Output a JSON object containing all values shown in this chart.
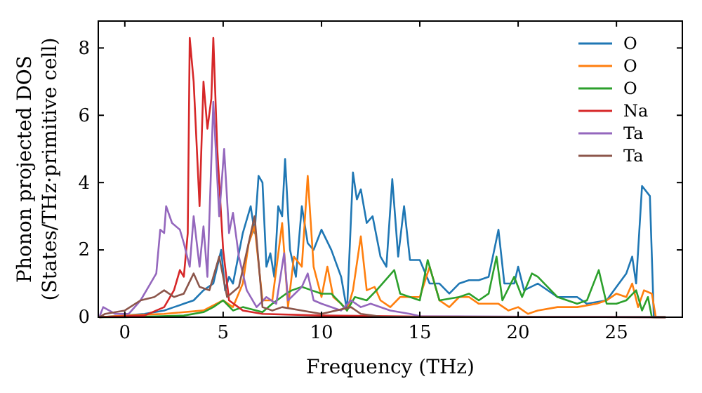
{
  "chart_data": {
    "type": "line",
    "xlabel": "Frequency (THz)",
    "ylabel": "Phonon projected DOS\n(States/THz·primitive cell)",
    "xlim": [
      -1.35,
      28.35
    ],
    "ylim": [
      0,
      8.8
    ],
    "xticks": [
      0,
      5,
      10,
      15,
      20,
      25
    ],
    "yticks": [
      0,
      2,
      4,
      6,
      8
    ],
    "grid": false,
    "legend": "top right",
    "marker": "none",
    "line_style": "solid",
    "series": [
      {
        "name": "O",
        "color": "#1f77b4",
        "x": [
          -1.3,
          0,
          1,
          2,
          2.5,
          3,
          3.5,
          4,
          4.5,
          4.9,
          5.1,
          5.3,
          5.5,
          6,
          6.4,
          6.6,
          6.8,
          7,
          7.2,
          7.4,
          7.6,
          7.8,
          8,
          8.15,
          8.4,
          8.7,
          9,
          9.3,
          9.6,
          10,
          10.5,
          11,
          11.3,
          11.6,
          11.8,
          12,
          12.3,
          12.6,
          13,
          13.3,
          13.6,
          13.9,
          14.2,
          14.5,
          15,
          15.5,
          16,
          16.5,
          17,
          17.5,
          18,
          18.5,
          19,
          19.3,
          19.8,
          20,
          20.3,
          21,
          22,
          23,
          23.5,
          24.5,
          25,
          25.5,
          25.8,
          26,
          26.3,
          26.7,
          26.9,
          27.5
        ],
        "values": [
          0,
          0.05,
          0.1,
          0.2,
          0.3,
          0.4,
          0.5,
          0.8,
          1.0,
          2.0,
          0.8,
          1.2,
          1.0,
          2.5,
          3.3,
          2.5,
          4.2,
          4.0,
          1.5,
          1.9,
          1.2,
          3.3,
          3.0,
          4.7,
          2.0,
          1.2,
          3.3,
          2.2,
          2.0,
          2.6,
          2.0,
          1.2,
          0.2,
          4.3,
          3.5,
          3.8,
          2.8,
          3.0,
          1.8,
          1.5,
          4.1,
          1.8,
          3.3,
          1.7,
          1.7,
          1.0,
          1.0,
          0.7,
          1.0,
          1.1,
          1.1,
          1.2,
          2.6,
          1.0,
          1.0,
          1.5,
          0.8,
          1.0,
          0.6,
          0.6,
          0.4,
          0.5,
          0.9,
          1.3,
          1.8,
          1.0,
          3.9,
          3.6,
          0,
          0
        ]
      },
      {
        "name": "O",
        "color": "#ff7f0e",
        "x": [
          -1.3,
          0,
          2,
          4,
          5,
          5.5,
          6,
          6.3,
          6.6,
          7,
          7.5,
          8,
          8.3,
          8.6,
          9,
          9.3,
          9.6,
          10,
          10.3,
          10.6,
          11,
          11.3,
          11.6,
          12,
          12.3,
          12.7,
          13,
          13.5,
          14,
          14.5,
          15,
          15.5,
          16,
          16.5,
          17,
          17.5,
          18,
          19,
          19.5,
          20,
          20.5,
          21,
          22,
          23,
          24,
          24.5,
          25,
          25.5,
          25.8,
          26.1,
          26.4,
          26.8,
          27,
          27.5
        ],
        "values": [
          0,
          0.05,
          0.1,
          0.2,
          0.5,
          0.3,
          1.0,
          2.2,
          2.7,
          0.5,
          0.5,
          2.8,
          0.3,
          1.8,
          1.5,
          4.2,
          1.5,
          0.6,
          1.5,
          0.6,
          0.4,
          0.2,
          0.8,
          2.4,
          0.8,
          0.9,
          0.5,
          0.3,
          0.6,
          0.6,
          0.6,
          1.5,
          0.5,
          0.3,
          0.6,
          0.6,
          0.4,
          0.4,
          0.2,
          0.3,
          0.1,
          0.2,
          0.3,
          0.3,
          0.4,
          0.5,
          0.7,
          0.6,
          1.0,
          0.3,
          0.8,
          0.7,
          0,
          0
        ]
      },
      {
        "name": "O",
        "color": "#2ca02c",
        "x": [
          -1.3,
          0,
          3,
          4,
          4.5,
          5,
          5.5,
          6,
          7,
          7.5,
          8.2,
          8.5,
          9,
          9.5,
          10,
          10.5,
          11,
          11.3,
          11.7,
          12.3,
          12.8,
          13.7,
          14,
          14.5,
          15,
          15.4,
          16,
          17,
          17.5,
          18,
          18.5,
          18.9,
          19.2,
          19.8,
          20.2,
          20.7,
          21,
          21.5,
          22,
          23,
          23.5,
          24.1,
          24.5,
          25,
          25.5,
          26,
          26.3,
          26.6,
          26.8,
          27.5
        ],
        "values": [
          0,
          0,
          0.05,
          0.15,
          0.3,
          0.5,
          0.2,
          0.3,
          0.15,
          0.4,
          0.7,
          0.8,
          0.9,
          0.8,
          0.7,
          0.7,
          0.4,
          0.2,
          0.6,
          0.5,
          0.8,
          1.4,
          0.7,
          0.6,
          0.5,
          1.7,
          0.5,
          0.6,
          0.7,
          0.5,
          0.7,
          1.8,
          0.5,
          1.2,
          0.6,
          1.3,
          1.2,
          0.9,
          0.6,
          0.4,
          0.5,
          1.4,
          0.4,
          0.4,
          0.5,
          0.8,
          0.2,
          0.6,
          0,
          0
        ]
      },
      {
        "name": "Na",
        "color": "#d62728",
        "x": [
          -1.3,
          1,
          2,
          2.5,
          2.8,
          3,
          3.2,
          3.3,
          3.5,
          3.8,
          4,
          4.2,
          4.4,
          4.5,
          4.7,
          5,
          5.3,
          6,
          7,
          10,
          15,
          20,
          27.5
        ],
        "values": [
          0,
          0.05,
          0.3,
          0.8,
          1.4,
          1.2,
          2.5,
          8.3,
          7.0,
          3.3,
          7.0,
          5.6,
          6.5,
          8.3,
          5.0,
          2.0,
          0.5,
          0.2,
          0.1,
          0.05,
          0.02,
          0.01,
          0
        ]
      },
      {
        "name": "Ta",
        "color": "#9467bd",
        "x": [
          -1.3,
          -1.1,
          -0.5,
          0.2,
          0.8,
          1.2,
          1.6,
          1.8,
          2.0,
          2.1,
          2.4,
          2.8,
          3.0,
          3.3,
          3.5,
          3.8,
          4.0,
          4.2,
          4.5,
          4.8,
          5.05,
          5.3,
          5.5,
          5.8,
          6.2,
          6.7,
          7.2,
          7.7,
          8.1,
          8.3,
          9,
          9.3,
          9.6,
          10,
          11,
          11.5,
          12,
          12.5,
          13.5,
          14.5,
          15,
          27.5
        ],
        "values": [
          0,
          0.3,
          0.1,
          0.1,
          0.5,
          0.9,
          1.3,
          2.6,
          2.5,
          3.3,
          2.8,
          2.6,
          2.2,
          1.5,
          3.0,
          1.5,
          2.7,
          1.2,
          6.4,
          3.0,
          5.0,
          2.5,
          3.1,
          1.8,
          0.8,
          0.3,
          0.6,
          0.4,
          1.9,
          0.5,
          0.9,
          1.3,
          0.5,
          0.4,
          0.2,
          0.5,
          0.3,
          0.4,
          0.2,
          0.1,
          0.03,
          0
        ]
      },
      {
        "name": "Ta",
        "color": "#8c564b",
        "x": [
          -1.3,
          -1,
          0,
          0.8,
          1.5,
          2.0,
          2.5,
          3.0,
          3.5,
          3.8,
          4.3,
          4.8,
          5.2,
          5.8,
          6.6,
          7.0,
          7.5,
          8,
          9,
          10,
          11.5,
          12,
          13,
          20,
          27.5
        ],
        "values": [
          0,
          0.1,
          0.2,
          0.5,
          0.6,
          0.8,
          0.6,
          0.7,
          1.3,
          0.9,
          0.8,
          1.8,
          0.6,
          0.9,
          3.0,
          0.3,
          0.2,
          0.3,
          0.2,
          0.1,
          0.3,
          0.1,
          0.02,
          0.01,
          0
        ]
      }
    ]
  }
}
